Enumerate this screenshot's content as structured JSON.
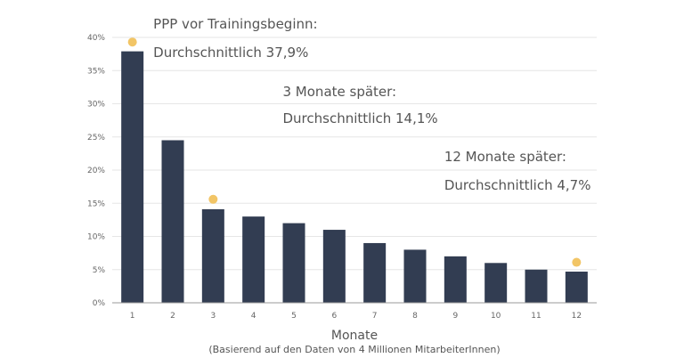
{
  "chart_data": {
    "type": "bar",
    "categories": [
      "1",
      "2",
      "3",
      "4",
      "5",
      "6",
      "7",
      "8",
      "9",
      "10",
      "11",
      "12"
    ],
    "values": [
      37.9,
      24.5,
      14.1,
      13.0,
      12.0,
      11.0,
      9.0,
      8.0,
      7.0,
      6.0,
      5.0,
      4.7
    ],
    "title": "",
    "xlabel": "Monate",
    "xlabel_note": "(Basierend auf den Daten von 4 Millionen MitarbeiterInnen)",
    "ylabel": "",
    "ylim": [
      0,
      40
    ],
    "yticks": [
      0,
      5,
      10,
      15,
      20,
      25,
      30,
      35,
      40
    ],
    "ytick_labels": [
      "0%",
      "5%",
      "10%",
      "15%",
      "20%",
      "25%",
      "30%",
      "35%",
      "40%"
    ],
    "grid": true,
    "colors": {
      "bar": "#323d52",
      "marker": "#f2c566",
      "grid": "#e6e6e6",
      "axis": "#999999"
    },
    "highlights": [
      {
        "category": "1",
        "value": 39.3
      },
      {
        "category": "3",
        "value": 15.6
      },
      {
        "category": "12",
        "value": 6.1
      }
    ],
    "annotations": [
      {
        "category": "1",
        "lines": [
          "PPP vor Trainingsbeginn:",
          "Durchschnittlich 37,9%"
        ]
      },
      {
        "category": "5",
        "lines": [
          "3 Monate später:",
          "Durchschnittlich 14,1%"
        ]
      },
      {
        "category": "9",
        "lines": [
          "12 Monate später:",
          "Durchschnittlich 4,7%"
        ]
      }
    ]
  }
}
